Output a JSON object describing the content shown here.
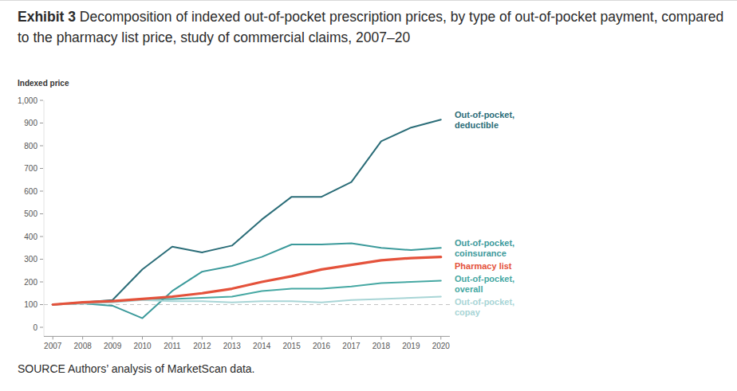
{
  "chart_data": {
    "type": "line",
    "exhibit": "Exhibit 3",
    "title": "Decomposition of indexed out-of-pocket prescription prices, by type of out-of-pocket payment, compared to the pharmacy list price, study of commercial claims, 2007–20",
    "y_label": "Indexed price",
    "source": "SOURCE Authors’ analysis of MarketScan data.",
    "x": [
      2007,
      2008,
      2009,
      2010,
      2011,
      2012,
      2013,
      2014,
      2015,
      2016,
      2017,
      2018,
      2019,
      2020
    ],
    "xlim": [
      2006.7,
      2020.3
    ],
    "xticks": [
      2007,
      2008,
      2009,
      2010,
      2011,
      2012,
      2013,
      2014,
      2015,
      2016,
      2017,
      2018,
      2019,
      2020
    ],
    "ylim": [
      -40,
      1000
    ],
    "yticks": [
      0,
      100,
      200,
      300,
      400,
      500,
      600,
      700,
      800,
      900,
      {
        "value": 1000,
        "label": "1,000"
      }
    ],
    "baseline": 100,
    "grid": false,
    "series": [
      {
        "name": "Out-of-pocket, deductible",
        "color": "#2b6d78",
        "values": [
          100,
          110,
          120,
          255,
          355,
          330,
          360,
          475,
          575,
          575,
          640,
          820,
          880,
          915
        ]
      },
      {
        "name": "Out-of-pocket, coinsurance",
        "color": "#3c9a9b",
        "values": [
          100,
          105,
          95,
          40,
          160,
          245,
          270,
          310,
          365,
          365,
          370,
          350,
          340,
          350
        ]
      },
      {
        "name": "Pharmacy list",
        "color": "#e4523b",
        "values": [
          100,
          110,
          115,
          125,
          135,
          150,
          170,
          200,
          225,
          255,
          275,
          295,
          305,
          310
        ]
      },
      {
        "name": "Out-of-pocket, overall",
        "color": "#46a8a3",
        "values": [
          100,
          110,
          115,
          125,
          125,
          130,
          135,
          160,
          170,
          170,
          180,
          195,
          200,
          205
        ]
      },
      {
        "name": "Out-of-pocket, copay",
        "color": "#a8d5d6",
        "values": [
          100,
          105,
          110,
          120,
          115,
          115,
          110,
          115,
          115,
          110,
          120,
          125,
          130,
          135
        ]
      }
    ]
  }
}
